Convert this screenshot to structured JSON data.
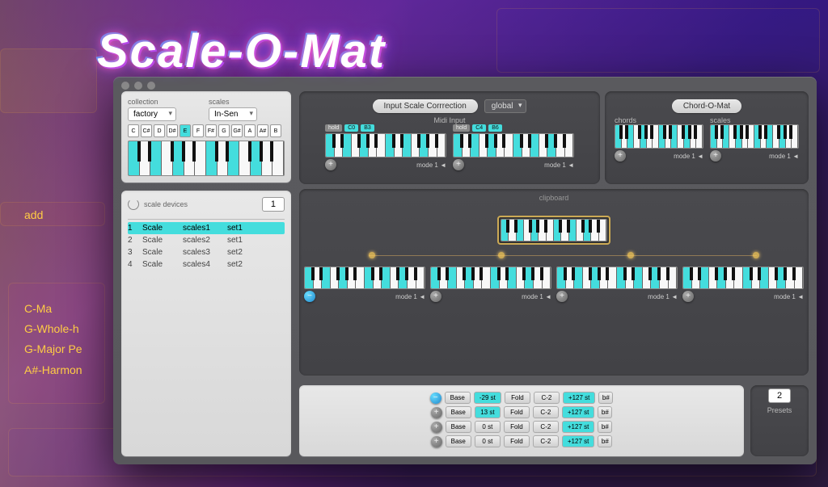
{
  "title": "Scale-O-Mat",
  "collection": {
    "label": "collection",
    "value": "factory"
  },
  "scales": {
    "label": "scales",
    "value": "In-Sen"
  },
  "notes": [
    "C",
    "C#",
    "D",
    "D#",
    "E",
    "F",
    "F#",
    "G",
    "G#",
    "A",
    "A#",
    "B"
  ],
  "active_notes": [
    4
  ],
  "scale_devices": {
    "label": "scale devices",
    "count": "1",
    "cols": [
      "",
      "",
      "",
      ""
    ],
    "rows": [
      {
        "n": "1",
        "a": "Scale",
        "b": "scales1",
        "c": "set1"
      },
      {
        "n": "2",
        "a": "Scale",
        "b": "scales2",
        "c": "set1"
      },
      {
        "n": "3",
        "a": "Scale",
        "b": "scales3",
        "c": "set2"
      },
      {
        "n": "4",
        "a": "Scale",
        "b": "scales4",
        "c": "set2"
      }
    ]
  },
  "input_correction": {
    "label": "Input Scale Corrrection",
    "mode": "global"
  },
  "midi_input_label": "Midi Input",
  "chord_o_mat": "Chord-O-Mat",
  "kbd_tags": {
    "left": [
      {
        "t": "hold",
        "c": "gray"
      },
      {
        "t": "C0",
        "c": "cyan"
      },
      {
        "t": "B3",
        "c": "cyan"
      }
    ],
    "right": [
      {
        "t": "hold",
        "c": "gray"
      },
      {
        "t": "C4",
        "c": "cyan"
      },
      {
        "t": "B6",
        "c": "cyan"
      }
    ]
  },
  "chord_labels": {
    "a": "chords",
    "b": "scales"
  },
  "mode_label": "mode 1 ◄",
  "clipboard_label": "clipboard",
  "presets": {
    "count": "2",
    "label": "Presets"
  },
  "params": [
    {
      "btn": "minus-blue",
      "base": "Base",
      "st": "-29 st",
      "st_hl": true,
      "fold": "Fold",
      "c": "C-2",
      "max": "+127 st",
      "flat": "b#"
    },
    {
      "btn": "plus",
      "base": "Base",
      "st": "13 st",
      "st_hl": true,
      "fold": "Fold",
      "c": "C-2",
      "max": "+127 st",
      "flat": "b#"
    },
    {
      "btn": "plus",
      "base": "Base",
      "st": "0 st",
      "st_hl": false,
      "fold": "Fold",
      "c": "C-2",
      "max": "+127 st",
      "flat": "b#"
    },
    {
      "btn": "plus",
      "base": "Base",
      "st": "0 st",
      "st_hl": false,
      "fold": "Fold",
      "c": "C-2",
      "max": "+127 st",
      "flat": "b#"
    }
  ],
  "highlight_keys": [
    0,
    2,
    4,
    7,
    9
  ],
  "colors": {
    "accent": "#44dddd",
    "panel": "#5a5a5e",
    "gold": "#cca55a"
  }
}
